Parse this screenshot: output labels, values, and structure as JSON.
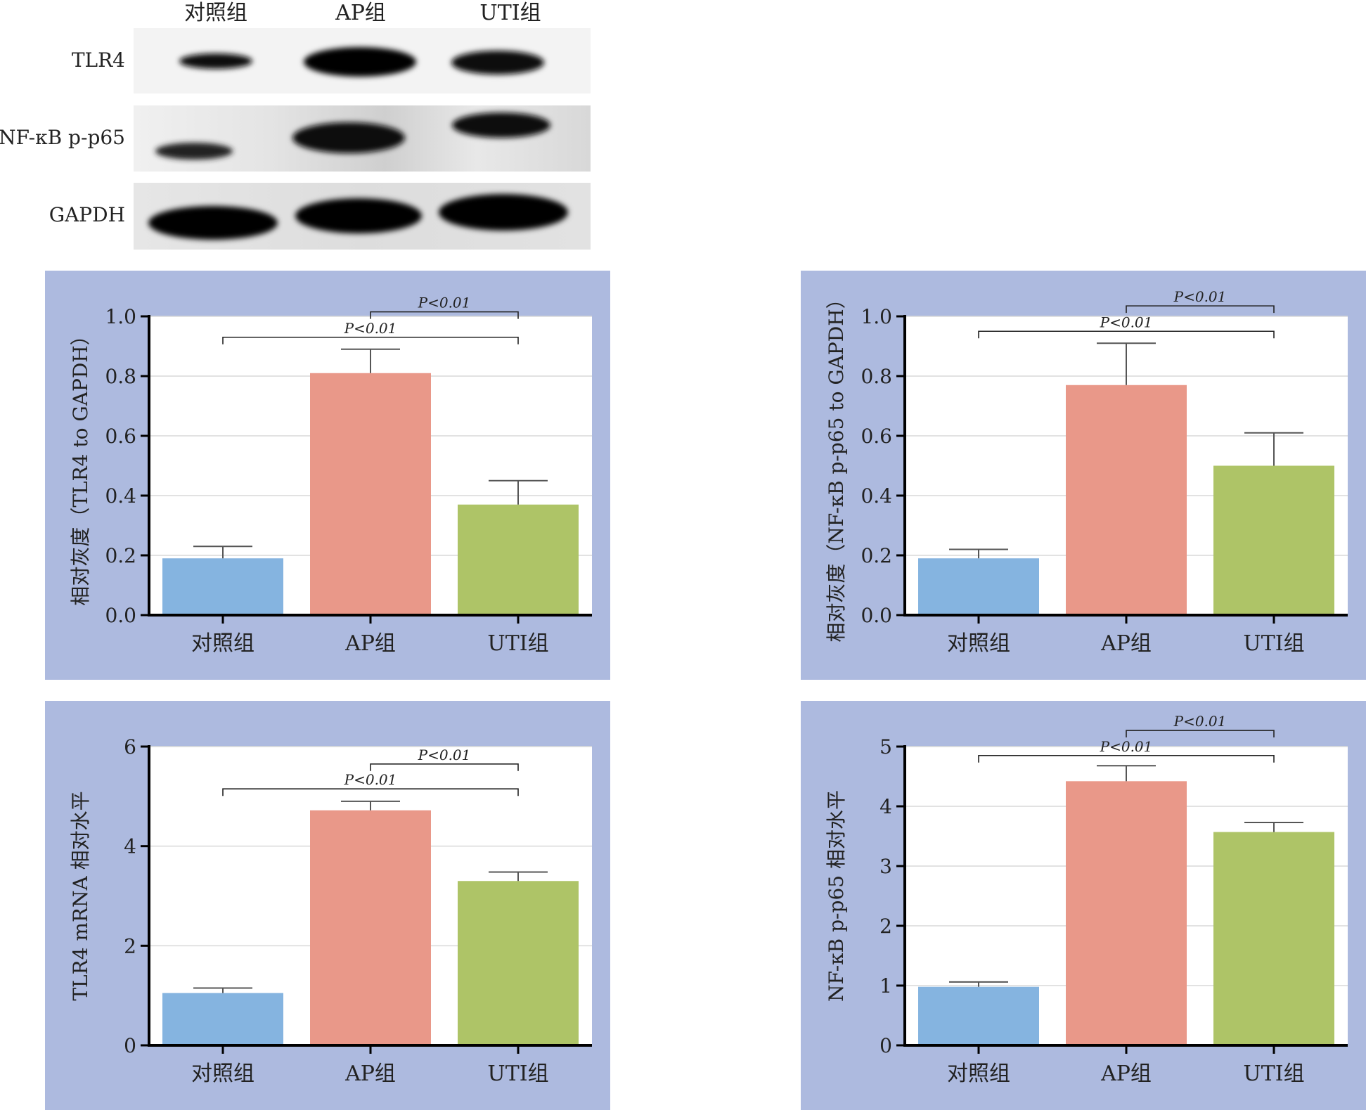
{
  "blot": {
    "columns": [
      "对照组",
      "AP组",
      "UTI组"
    ],
    "rows": [
      "TLR4",
      "NF-κB p-p65",
      "GAPDH"
    ]
  },
  "colors": {
    "panel_bg": "#adbadf",
    "plot_bg": "#ffffff",
    "grid": "#d9d9d9",
    "bars": [
      "#85b4e0",
      "#e99889",
      "#aec467"
    ]
  },
  "chart_data": [
    {
      "id": "a",
      "type": "bar",
      "categories": [
        "对照组",
        "AP组",
        "UTI组"
      ],
      "values": [
        0.19,
        0.81,
        0.37
      ],
      "errors": [
        0.04,
        0.08,
        0.08
      ],
      "ylabel": "相对灰度（TLR4 to GAPDH）",
      "ylim": [
        0,
        1.0
      ],
      "yticks": [
        0.0,
        0.2,
        0.4,
        0.6,
        0.8,
        1.0
      ],
      "ytick_labels": [
        "0.0",
        "0.2",
        "0.4",
        "0.6",
        "0.8",
        "1.0"
      ],
      "grid": true,
      "significance": [
        {
          "from": 1,
          "to": 2,
          "y": 1.015,
          "label": "P<0.01"
        },
        {
          "from": 0,
          "to": 2,
          "y": 0.93,
          "label": "P<0.01"
        }
      ]
    },
    {
      "id": "b",
      "type": "bar",
      "categories": [
        "对照组",
        "AP组",
        "UTI组"
      ],
      "values": [
        0.19,
        0.77,
        0.5
      ],
      "errors": [
        0.03,
        0.14,
        0.11
      ],
      "ylabel": "相对灰度（NF-κB p-p65 to GAPDH）",
      "ylim": [
        0,
        1.0
      ],
      "yticks": [
        0.0,
        0.2,
        0.4,
        0.6,
        0.8,
        1.0
      ],
      "ytick_labels": [
        "0.0",
        "0.2",
        "0.4",
        "0.6",
        "0.8",
        "1.0"
      ],
      "grid": true,
      "significance": [
        {
          "from": 1,
          "to": 2,
          "y": 1.035,
          "label": "P<0.01"
        },
        {
          "from": 0,
          "to": 2,
          "y": 0.95,
          "label": "P<0.01"
        }
      ]
    },
    {
      "id": "c",
      "type": "bar",
      "categories": [
        "对照组",
        "AP组",
        "UTI组"
      ],
      "values": [
        1.05,
        4.72,
        3.3
      ],
      "errors": [
        0.1,
        0.18,
        0.18
      ],
      "ylabel": "TLR4 mRNA 相对水平",
      "ylim": [
        0,
        6
      ],
      "yticks": [
        0,
        2,
        4,
        6
      ],
      "ytick_labels": [
        "0",
        "2",
        "4",
        "6"
      ],
      "grid": true,
      "significance": [
        {
          "from": 1,
          "to": 2,
          "y": 5.65,
          "label": "P<0.01"
        },
        {
          "from": 0,
          "to": 2,
          "y": 5.15,
          "label": "P<0.01"
        }
      ]
    },
    {
      "id": "d",
      "type": "bar",
      "categories": [
        "对照组",
        "AP组",
        "UTI组"
      ],
      "values": [
        0.98,
        4.42,
        3.57
      ],
      "errors": [
        0.08,
        0.26,
        0.16
      ],
      "ylabel": "NF-κB p-p65 相对水平",
      "ylim": [
        0,
        5
      ],
      "yticks": [
        0,
        1,
        2,
        3,
        4,
        5
      ],
      "ytick_labels": [
        "0",
        "1",
        "2",
        "3",
        "4",
        "5"
      ],
      "grid": true,
      "significance": [
        {
          "from": 1,
          "to": 2,
          "y": 5.27,
          "label": "P<0.01"
        },
        {
          "from": 0,
          "to": 2,
          "y": 4.85,
          "label": "P<0.01"
        }
      ]
    }
  ]
}
